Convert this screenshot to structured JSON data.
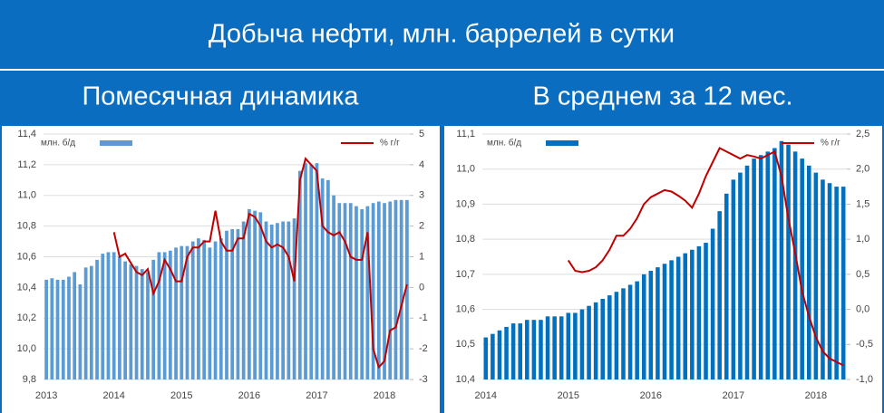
{
  "header": {
    "title": "Добыча нефти, млн. баррелей в сутки"
  },
  "chart_data": [
    {
      "type": "bar_line",
      "title": "Помесячная динамика",
      "categories": [
        "2013",
        null,
        null,
        null,
        null,
        null,
        null,
        null,
        null,
        null,
        null,
        null,
        "2014",
        null,
        null,
        null,
        null,
        null,
        null,
        null,
        null,
        null,
        null,
        null,
        "2015",
        null,
        null,
        null,
        null,
        null,
        null,
        null,
        null,
        null,
        null,
        null,
        "2016",
        null,
        null,
        null,
        null,
        null,
        null,
        null,
        null,
        null,
        null,
        null,
        "2017",
        null,
        null,
        null,
        null,
        null,
        null,
        null,
        null,
        null,
        null,
        null,
        "2018",
        null,
        null,
        null,
        null
      ],
      "series": [
        {
          "name": "млн. б/д",
          "color": "#5b9bd5",
          "values": [
            10.45,
            10.46,
            10.45,
            10.45,
            10.47,
            10.5,
            10.42,
            10.53,
            10.54,
            10.58,
            10.62,
            10.63,
            10.63,
            10.6,
            10.57,
            10.55,
            10.54,
            10.52,
            10.5,
            10.58,
            10.63,
            10.63,
            10.64,
            10.66,
            10.67,
            10.67,
            10.7,
            10.72,
            10.71,
            10.66,
            10.7,
            10.72,
            10.77,
            10.78,
            10.78,
            10.83,
            10.91,
            10.9,
            10.89,
            10.83,
            10.81,
            10.82,
            10.83,
            10.83,
            10.85,
            11.16,
            11.21,
            11.2,
            11.21,
            11.11,
            11.1,
            11.0,
            10.95,
            10.95,
            10.95,
            10.93,
            10.91,
            10.93,
            10.95,
            10.96,
            10.95,
            10.96,
            10.97,
            10.97,
            10.97
          ]
        },
        {
          "name": "% г/г",
          "color": "#c00000",
          "axis": "y2",
          "values": [
            null,
            null,
            null,
            null,
            null,
            null,
            null,
            null,
            null,
            null,
            null,
            null,
            1.8,
            1.0,
            1.1,
            0.8,
            0.5,
            0.4,
            0.6,
            -0.2,
            0.2,
            0.9,
            0.6,
            0.2,
            0.2,
            1.0,
            1.3,
            1.3,
            1.5,
            1.5,
            2.5,
            1.5,
            1.2,
            1.2,
            1.6,
            1.6,
            2.4,
            2.3,
            2.0,
            1.5,
            1.3,
            1.4,
            1.3,
            1.0,
            0.2,
            3.5,
            4.2,
            4.0,
            3.8,
            2.0,
            1.8,
            1.7,
            1.8,
            1.5,
            1.0,
            0.9,
            0.9,
            1.8,
            -2.0,
            -2.6,
            -2.4,
            -1.4,
            -1.3,
            -0.6,
            0.1
          ]
        }
      ],
      "ylim": [
        9.8,
        11.4
      ],
      "yticks": [
        {
          "value": 9.8,
          "label": "9,8"
        },
        {
          "value": 10.0,
          "label": "10,0"
        },
        {
          "value": 10.2,
          "label": "10,2"
        },
        {
          "value": 10.4,
          "label": "10,4"
        },
        {
          "value": 10.6,
          "label": "10,6"
        },
        {
          "value": 10.8,
          "label": "10,8"
        },
        {
          "value": 11.0,
          "label": "11,0"
        },
        {
          "value": 11.2,
          "label": "11,2"
        },
        {
          "value": 11.4,
          "label": "11,4"
        }
      ],
      "y2lim": [
        -3,
        5
      ],
      "y2ticks": [
        -3,
        -2,
        -1,
        0,
        1,
        2,
        3,
        4,
        5
      ]
    },
    {
      "type": "bar_line",
      "title": "В среднем за 12 мес.",
      "categories": [
        "2014",
        null,
        null,
        null,
        null,
        null,
        null,
        null,
        null,
        null,
        null,
        null,
        "2015",
        null,
        null,
        null,
        null,
        null,
        null,
        null,
        null,
        null,
        null,
        null,
        "2016",
        null,
        null,
        null,
        null,
        null,
        null,
        null,
        null,
        null,
        null,
        null,
        "2017",
        null,
        null,
        null,
        null,
        null,
        null,
        null,
        null,
        null,
        null,
        null,
        "2018",
        null,
        null,
        null,
        null
      ],
      "series": [
        {
          "name": "млн. б/д",
          "color": "#0070c0",
          "values": [
            10.52,
            10.53,
            10.54,
            10.55,
            10.56,
            10.56,
            10.57,
            10.57,
            10.57,
            10.58,
            10.58,
            10.58,
            10.59,
            10.59,
            10.6,
            10.61,
            10.62,
            10.63,
            10.64,
            10.65,
            10.66,
            10.67,
            10.68,
            10.7,
            10.71,
            10.72,
            10.73,
            10.74,
            10.75,
            10.76,
            10.77,
            10.78,
            10.79,
            10.83,
            10.88,
            10.93,
            10.97,
            10.99,
            11.01,
            11.03,
            11.04,
            11.05,
            11.06,
            11.08,
            11.07,
            11.05,
            11.03,
            11.01,
            10.99,
            10.97,
            10.96,
            10.95,
            10.95
          ]
        },
        {
          "name": "% г/г",
          "color": "#c00000",
          "axis": "y2",
          "values": [
            null,
            null,
            null,
            null,
            null,
            null,
            null,
            null,
            null,
            null,
            null,
            null,
            0.7,
            0.55,
            0.53,
            0.55,
            0.6,
            0.7,
            0.85,
            1.05,
            1.05,
            1.15,
            1.3,
            1.5,
            1.6,
            1.65,
            1.7,
            1.68,
            1.62,
            1.55,
            1.45,
            1.65,
            1.9,
            2.1,
            2.3,
            2.25,
            2.2,
            2.15,
            2.2,
            2.18,
            2.15,
            2.2,
            2.25,
            1.9,
            1.3,
            0.8,
            0.25,
            -0.1,
            -0.4,
            -0.6,
            -0.7,
            -0.75,
            -0.8
          ]
        }
      ],
      "ylim": [
        10.4,
        11.1
      ],
      "yticks": [
        {
          "value": 10.4,
          "label": "10,4"
        },
        {
          "value": 10.5,
          "label": "10,5"
        },
        {
          "value": 10.6,
          "label": "10,6"
        },
        {
          "value": 10.7,
          "label": "10,7"
        },
        {
          "value": 10.8,
          "label": "10,8"
        },
        {
          "value": 10.9,
          "label": "10,9"
        },
        {
          "value": 11.0,
          "label": "11,0"
        },
        {
          "value": 11.1,
          "label": "11,1"
        }
      ],
      "y2lim": [
        -1,
        2.5
      ],
      "y2ticks": [
        {
          "value": -1,
          "label": "-1,0"
        },
        {
          "value": -0.5,
          "label": "-0,5"
        },
        {
          "value": 0,
          "label": "0,0"
        },
        {
          "value": 0.5,
          "label": "0,5"
        },
        {
          "value": 1,
          "label": "1,0"
        },
        {
          "value": 1.5,
          "label": "1,5"
        },
        {
          "value": 2,
          "label": "2,0"
        },
        {
          "value": 2.5,
          "label": "2,5"
        }
      ]
    }
  ]
}
